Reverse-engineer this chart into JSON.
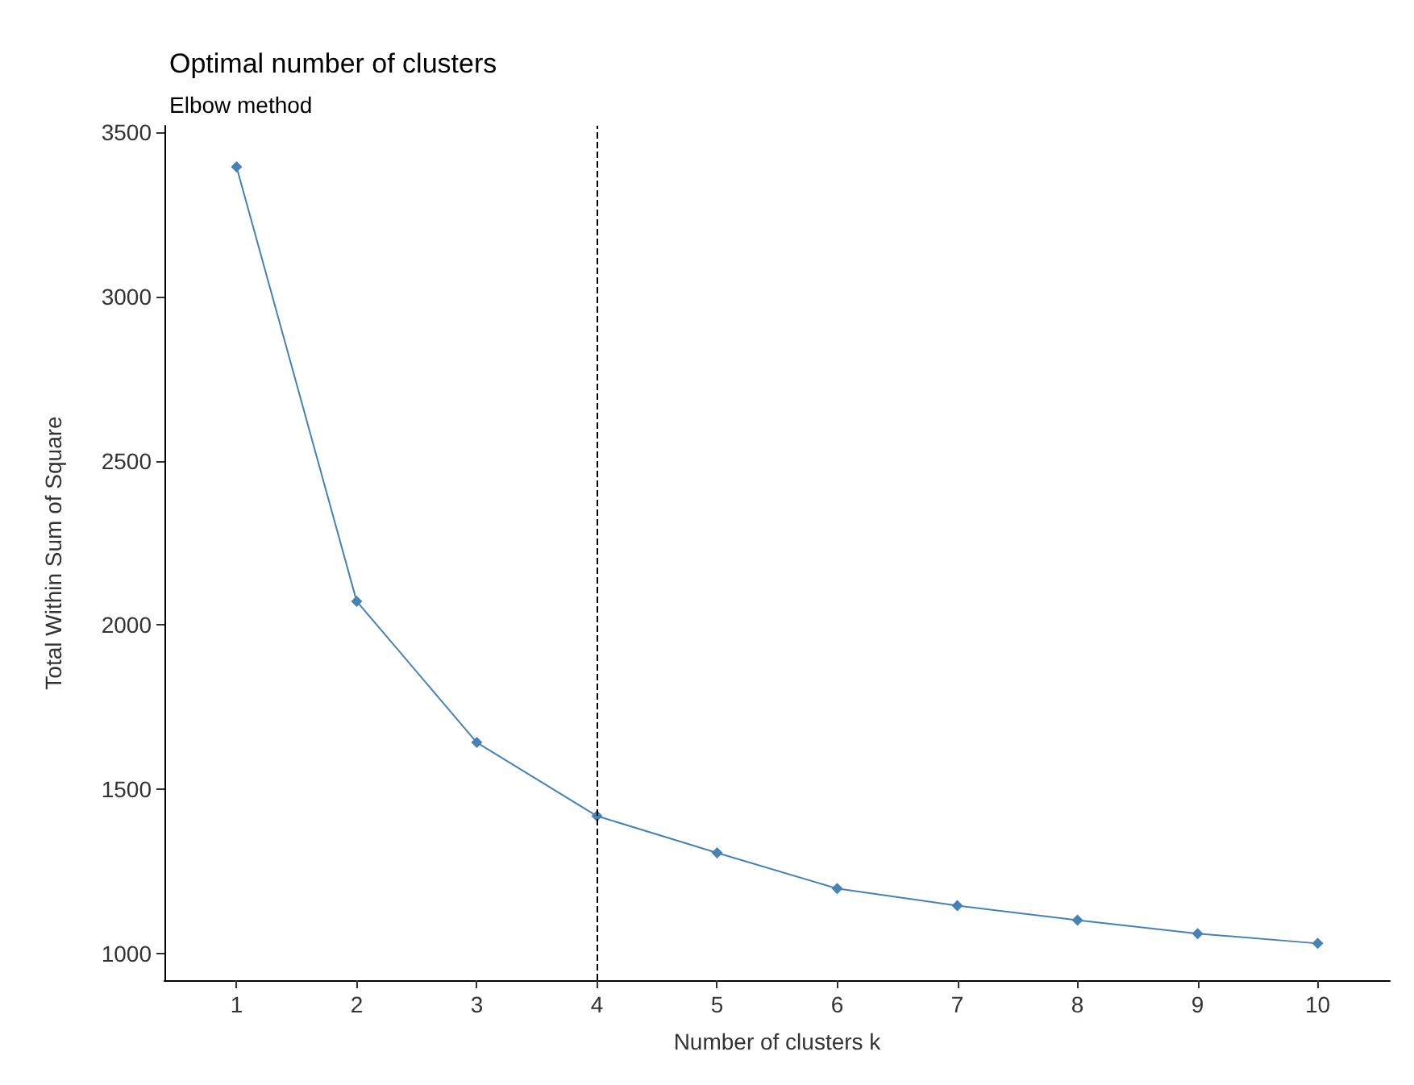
{
  "chart_data": {
    "type": "line",
    "title": "Optimal number of clusters",
    "subtitle": "Elbow method",
    "xlabel": "Number of clusters k",
    "ylabel": "Total Within Sum of Square",
    "x": [
      1,
      2,
      3,
      4,
      5,
      6,
      7,
      8,
      9,
      10
    ],
    "series": [
      {
        "color": "#4682b4",
        "values": [
          3395,
          2072,
          1642,
          1418,
          1306,
          1197,
          1145,
          1101,
          1060,
          1030
        ]
      }
    ],
    "xlim": [
      0.4,
      10.6
    ],
    "xticks": [
      1,
      2,
      3,
      4,
      5,
      6,
      7,
      8,
      9,
      10
    ],
    "ylim": [
      918,
      3520
    ],
    "yticks": [
      1000,
      1500,
      2000,
      2500,
      3000,
      3500
    ],
    "ref_lines": [
      {
        "axis": "x",
        "value": 4,
        "color": "#000000",
        "line_style": "dashed"
      }
    ],
    "grid": false,
    "marker": "diamond",
    "line_style": "solid"
  }
}
